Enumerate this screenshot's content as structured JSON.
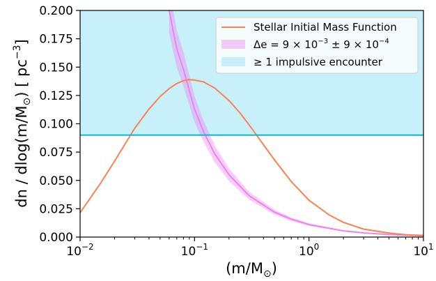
{
  "chart_data": {
    "type": "line",
    "title": "",
    "xlabel": "(m/M⊙)",
    "ylabel": "dn / dlog(m/M⊙) [ pc⁻³]",
    "xscale": "log",
    "xlim": [
      0.01,
      10
    ],
    "ylim": [
      0,
      0.2
    ],
    "x_ticks": [
      {
        "value": 0.01,
        "base": "10",
        "exp": "−2"
      },
      {
        "value": 0.1,
        "base": "10",
        "exp": "−1"
      },
      {
        "value": 1,
        "base": "10",
        "exp": "0"
      },
      {
        "value": 10,
        "base": "10",
        "exp": "1"
      }
    ],
    "y_ticks": [
      "0.000",
      "0.025",
      "0.050",
      "0.075",
      "0.100",
      "0.125",
      "0.150",
      "0.175",
      "0.200"
    ],
    "legend_position": "top-right",
    "series": [
      {
        "name": "Stellar Initial Mass Function",
        "kind": "line",
        "color": "#ff7f50",
        "x": [
          0.01,
          0.015,
          0.02,
          0.03,
          0.04,
          0.05,
          0.06,
          0.07,
          0.08,
          0.09,
          0.1,
          0.12,
          0.15,
          0.2,
          0.25,
          0.3,
          0.4,
          0.5,
          0.7,
          1.0,
          1.5,
          2.0,
          3.0,
          5.0,
          7.0,
          10.0
        ],
        "y": [
          0.0215,
          0.047,
          0.067,
          0.096,
          0.113,
          0.124,
          0.131,
          0.1355,
          0.138,
          0.139,
          0.1385,
          0.137,
          0.1315,
          0.1205,
          0.1095,
          0.099,
          0.0815,
          0.068,
          0.049,
          0.0325,
          0.0195,
          0.013,
          0.007,
          0.0035,
          0.002,
          0.0015
        ]
      },
      {
        "name": "Δe = 9 × 10⁻³ ± 9 × 10⁻⁴",
        "kind": "band",
        "color": "#ee82ee",
        "fill": "#ee82ee",
        "x": [
          0.06,
          0.07,
          0.08,
          0.1,
          0.12,
          0.15,
          0.2,
          0.3,
          0.5,
          0.7,
          1.0,
          2.0,
          3.0,
          5.0,
          10.0
        ],
        "y": [
          0.2,
          0.166,
          0.148,
          0.113,
          0.093,
          0.0735,
          0.055,
          0.0365,
          0.022,
          0.0158,
          0.011,
          0.0055,
          0.0037,
          0.0022,
          0.0011
        ],
        "y_low": [
          0.18,
          0.1495,
          0.133,
          0.1015,
          0.084,
          0.066,
          0.0495,
          0.033,
          0.0198,
          0.0142,
          0.0099,
          0.005,
          0.0033,
          0.002,
          0.001
        ],
        "y_high": [
          0.22,
          0.1825,
          0.163,
          0.1245,
          0.1025,
          0.081,
          0.0605,
          0.04,
          0.0242,
          0.0174,
          0.0121,
          0.006,
          0.0041,
          0.0024,
          0.0012
        ]
      },
      {
        "name": "≥ 1 impulsive encounter",
        "kind": "region",
        "fill": "#c8f0fb",
        "line_color": "#00bcd4",
        "y_from": 0.09,
        "y_to": 0.2
      }
    ],
    "legend_labels": {
      "imf": "Stellar Initial Mass Function",
      "de_prefix": "Δe = 9 × 10",
      "de_exp1": "−3",
      "de_mid": " ± 9 × 10",
      "de_exp2": "−4",
      "encounter": "≥ 1 impulsive encounter"
    }
  }
}
